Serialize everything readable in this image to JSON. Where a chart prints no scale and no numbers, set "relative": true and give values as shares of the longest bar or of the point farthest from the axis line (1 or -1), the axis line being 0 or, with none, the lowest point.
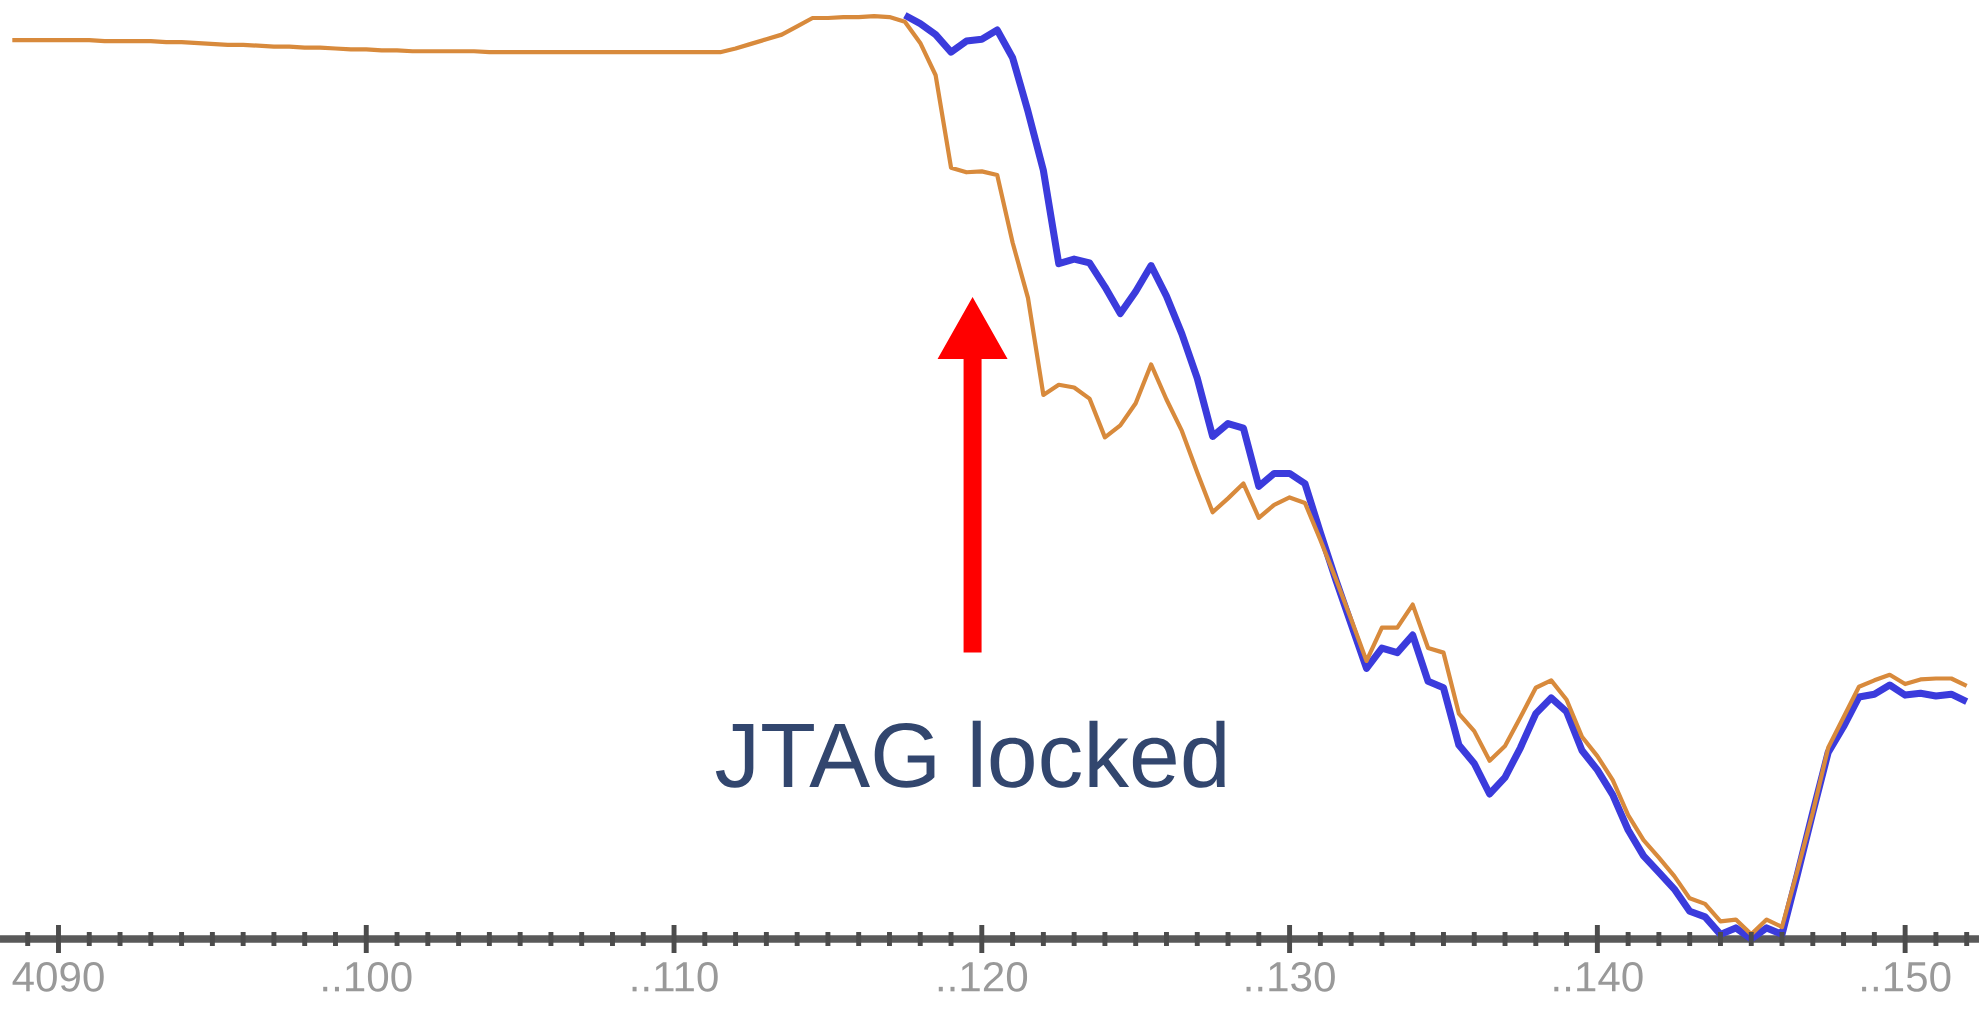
{
  "chart_data": {
    "type": "line",
    "relative": true,
    "categories": [
      null,
      null,
      null,
      "4090",
      null,
      null,
      null,
      null,
      null,
      null,
      null,
      null,
      null,
      null,
      null,
      null,
      null,
      null,
      null,
      null,
      null,
      null,
      null,
      "..100",
      null,
      null,
      null,
      null,
      null,
      null,
      null,
      null,
      null,
      null,
      null,
      null,
      null,
      null,
      null,
      null,
      null,
      null,
      null,
      "..110",
      null,
      null,
      null,
      null,
      null,
      null,
      null,
      null,
      null,
      null,
      null,
      null,
      null,
      null,
      null,
      null,
      null,
      null,
      null,
      "..120",
      null,
      null,
      null,
      null,
      null,
      null,
      null,
      null,
      null,
      null,
      null,
      null,
      null,
      null,
      null,
      null,
      null,
      null,
      null,
      "..130",
      null,
      null,
      null,
      null,
      null,
      null,
      null,
      null,
      null,
      null,
      null,
      null,
      null,
      null,
      null,
      null,
      null,
      null,
      null,
      "..140",
      null,
      null,
      null,
      null,
      null,
      null,
      null,
      null,
      null,
      null,
      null,
      null,
      null,
      null,
      null,
      null,
      null,
      null,
      null,
      "..150",
      null,
      null,
      null,
      null
    ],
    "annotations": [
      "JTAG locked"
    ],
    "line_style": "solid",
    "series": [
      {
        "color": "#3b3bdc",
        "values": [
          null,
          null,
          null,
          null,
          null,
          null,
          null,
          null,
          null,
          null,
          null,
          null,
          null,
          null,
          null,
          null,
          null,
          null,
          null,
          null,
          null,
          null,
          null,
          null,
          null,
          null,
          null,
          null,
          null,
          null,
          null,
          null,
          null,
          null,
          null,
          null,
          null,
          null,
          null,
          null,
          null,
          null,
          null,
          null,
          null,
          null,
          null,
          null,
          null,
          null,
          null,
          null,
          null,
          null,
          null,
          null,
          null,
          null,
          1.0,
          0.991,
          0.979,
          0.96,
          0.972,
          0.974,
          0.984,
          0.954,
          0.896,
          0.832,
          0.731,
          0.736,
          0.732,
          0.706,
          0.677,
          0.701,
          0.729,
          0.696,
          0.655,
          0.607,
          0.544,
          0.558,
          0.553,
          0.49,
          0.504,
          0.504,
          0.493,
          0.44,
          0.389,
          0.341,
          0.293,
          0.315,
          0.31,
          0.329,
          0.279,
          0.272,
          0.21,
          0.19,
          0.157,
          0.175,
          0.207,
          0.244,
          0.261,
          0.246,
          0.204,
          0.183,
          0.156,
          0.118,
          0.09,
          0.072,
          0.054,
          0.03,
          0.024,
          0.005,
          0.012,
          0.0,
          0.012,
          0.005,
          0.07,
          0.137,
          0.202,
          0.23,
          0.262,
          0.265,
          0.275,
          0.264,
          0.266,
          0.263,
          0.265,
          0.257
        ]
      },
      {
        "color": "#d88a3c",
        "values": [
          0.973,
          0.973,
          0.973,
          0.973,
          0.973,
          0.973,
          0.972,
          0.972,
          0.972,
          0.972,
          0.971,
          0.971,
          0.97,
          0.969,
          0.968,
          0.968,
          0.967,
          0.966,
          0.966,
          0.965,
          0.965,
          0.964,
          0.963,
          0.963,
          0.962,
          0.962,
          0.961,
          0.961,
          0.961,
          0.961,
          0.961,
          0.96,
          0.96,
          0.96,
          0.96,
          0.96,
          0.96,
          0.96,
          0.96,
          0.96,
          0.96,
          0.96,
          0.96,
          0.96,
          0.96,
          0.96,
          0.96,
          0.964,
          0.969,
          0.974,
          0.979,
          0.988,
          0.997,
          0.997,
          0.998,
          0.998,
          0.999,
          0.998,
          0.993,
          0.97,
          0.935,
          0.835,
          0.83,
          0.831,
          0.827,
          0.754,
          0.694,
          0.589,
          0.6,
          0.597,
          0.585,
          0.543,
          0.556,
          0.58,
          0.622,
          0.584,
          0.55,
          0.505,
          0.462,
          0.477,
          0.493,
          0.456,
          0.47,
          0.478,
          0.472,
          0.432,
          0.39,
          0.346,
          0.301,
          0.337,
          0.337,
          0.362,
          0.315,
          0.31,
          0.244,
          0.225,
          0.193,
          0.209,
          0.24,
          0.272,
          0.28,
          0.259,
          0.219,
          0.198,
          0.172,
          0.134,
          0.107,
          0.088,
          0.068,
          0.044,
          0.038,
          0.019,
          0.021,
          0.005,
          0.021,
          0.013,
          0.074,
          0.137,
          0.207,
          0.24,
          0.273,
          0.28,
          0.286,
          0.276,
          0.281,
          0.282,
          0.282,
          0.274
        ]
      }
    ]
  }
}
